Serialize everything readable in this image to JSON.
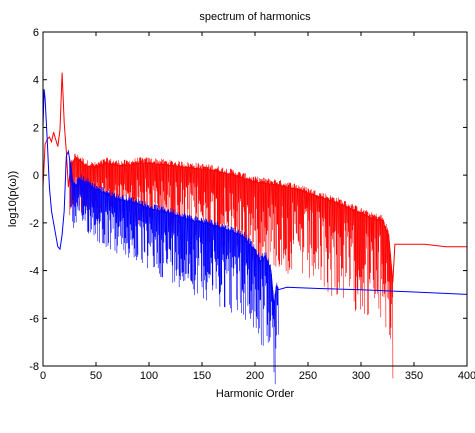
{
  "chart_data": {
    "type": "line",
    "title": "spectrum of harmonics",
    "xlabel": "Harmonic Order",
    "ylabel": "log10(p(ω))",
    "xlim": [
      0,
      400
    ],
    "ylim": [
      -8,
      6
    ],
    "xticks": [
      0,
      50,
      100,
      150,
      200,
      250,
      300,
      350,
      400
    ],
    "xtick_labels": [
      "0",
      "50",
      "100",
      "150",
      "200",
      "250",
      "300",
      "350",
      "400"
    ],
    "yticks": [
      -8,
      -6,
      -4,
      -2,
      0,
      2,
      4,
      6
    ],
    "ytick_labels": [
      "-8",
      "-6",
      "-4",
      "-2",
      "0",
      "2",
      "4",
      "6"
    ],
    "grid": false,
    "series": [
      {
        "color": "#ff0000",
        "x": [
          0,
          2,
          4,
          6,
          8,
          10,
          12,
          14,
          16,
          18,
          20,
          22,
          24,
          26,
          28,
          30,
          35,
          40,
          50,
          60,
          70,
          80,
          90,
          100,
          120,
          140,
          160,
          180,
          200,
          220,
          240,
          260,
          280,
          300,
          310,
          320,
          326,
          328,
          330,
          332,
          340,
          360,
          380,
          400
        ],
        "y": [
          -0.5,
          1.3,
          1.5,
          1.6,
          1.4,
          1.8,
          1.5,
          1.2,
          1.9,
          4.3,
          2.2,
          1.0,
          -0.5,
          0.3,
          0.5,
          0.7,
          0.6,
          0.4,
          0.3,
          0.5,
          0.4,
          0.4,
          0.5,
          0.5,
          0.4,
          0.3,
          0.2,
          0.0,
          -0.3,
          -0.4,
          -0.6,
          -0.9,
          -1.2,
          -1.6,
          -1.8,
          -1.9,
          -2.5,
          -3.5,
          -4.5,
          -2.9,
          -2.9,
          -2.9,
          -3.0,
          -3.0
        ],
        "dips_min": [
          -1.0,
          -1.3,
          -1.8,
          -1.5,
          -2.0,
          -2.4,
          -3.3,
          -2.6,
          -3.2,
          -4.2,
          -3.6,
          -3.6,
          -3.8,
          -4.0,
          -3.5,
          -3.3,
          -3.8,
          -4.2,
          -4.4,
          -4.1,
          -3.2,
          -3.0,
          -4.5,
          -2.9,
          -2.9,
          -2.9,
          -3.0,
          -3.0
        ]
      },
      {
        "color": "#0000ff",
        "x": [
          0,
          1,
          2,
          4,
          6,
          8,
          10,
          12,
          14,
          16,
          18,
          20,
          22,
          24,
          26,
          28,
          30,
          35,
          40,
          50,
          60,
          70,
          80,
          90,
          100,
          120,
          140,
          160,
          180,
          190,
          200,
          205,
          210,
          215,
          218,
          220,
          222,
          230,
          260,
          300,
          350,
          400
        ],
        "y": [
          2.0,
          3.6,
          3.2,
          1.5,
          -0.5,
          -1.5,
          -2.0,
          -2.5,
          -3.0,
          -3.1,
          -2.5,
          -1.5,
          0.8,
          1.0,
          0.4,
          -0.3,
          -0.5,
          -0.2,
          -0.3,
          -0.6,
          -0.8,
          -1.0,
          -1.1,
          -1.2,
          -1.4,
          -1.6,
          -1.9,
          -2.1,
          -2.4,
          -2.6,
          -3.2,
          -3.6,
          -3.4,
          -4.0,
          -5.5,
          -4.7,
          -4.8,
          -4.7,
          -4.75,
          -4.8,
          -4.9,
          -5.0
        ],
        "dips_min": [
          -1.0,
          -1.8,
          -2.3,
          -2.5,
          -2.8,
          -3.0,
          -3.4,
          -3.6,
          -3.8,
          -4.0,
          -4.2,
          -4.4,
          -4.6,
          -5.0,
          -7.1,
          -5.5
        ]
      }
    ]
  }
}
